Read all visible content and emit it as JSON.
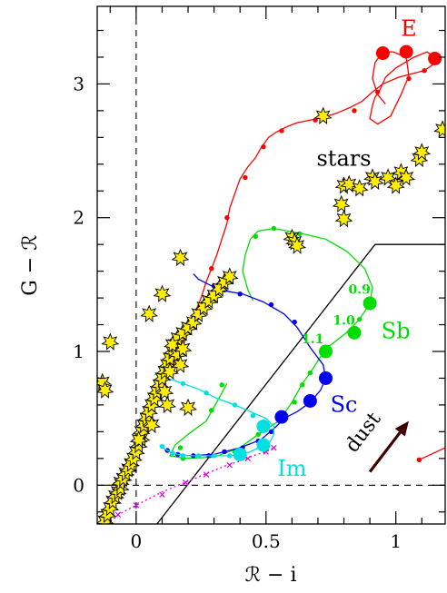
{
  "chart_data": {
    "type": "scatter",
    "title": "",
    "xlabel": "ℛ − i",
    "ylabel": "G − ℛ",
    "xlim": [
      -0.15,
      1.19
    ],
    "ylim": [
      -0.29,
      3.58
    ],
    "xticks": [
      0,
      0.5,
      1
    ],
    "xtick_labels": [
      "0",
      "0.5",
      "1"
    ],
    "yticks": [
      0,
      1,
      2,
      3
    ],
    "ytick_labels": [
      "0",
      "1",
      "2",
      "3"
    ],
    "grid": false,
    "legend": "none",
    "reference_lines": {
      "vertical_dashed_x": 0,
      "horizontal_dashed_y": 0
    },
    "selection_boundary": [
      [
        0.08,
        -0.29
      ],
      [
        0.92,
        1.8
      ],
      [
        1.19,
        1.8
      ]
    ],
    "tracks": [
      {
        "label": "E",
        "color": "#ff0000",
        "style": "solid",
        "small_marker": "dot",
        "line": [
          [
            -0.11,
            -0.27
          ],
          [
            -0.09,
            -0.18
          ],
          [
            -0.06,
            -0.05
          ],
          [
            -0.03,
            0.1
          ],
          [
            0.0,
            0.25
          ],
          [
            0.03,
            0.4
          ],
          [
            0.06,
            0.55
          ],
          [
            0.09,
            0.68
          ],
          [
            0.12,
            0.8
          ],
          [
            0.15,
            0.92
          ],
          [
            0.18,
            1.04
          ],
          [
            0.2,
            1.14
          ],
          [
            0.22,
            1.26
          ],
          [
            0.25,
            1.4
          ],
          [
            0.27,
            1.52
          ],
          [
            0.29,
            1.62
          ],
          [
            0.31,
            1.72
          ],
          [
            0.33,
            1.84
          ],
          [
            0.35,
            1.96
          ],
          [
            0.36,
            2.07
          ],
          [
            0.38,
            2.18
          ],
          [
            0.4,
            2.29
          ],
          [
            0.43,
            2.38
          ],
          [
            0.46,
            2.45
          ],
          [
            0.48,
            2.52
          ],
          [
            0.51,
            2.6
          ],
          [
            0.54,
            2.64
          ],
          [
            0.58,
            2.68
          ],
          [
            0.62,
            2.71
          ],
          [
            0.67,
            2.73
          ],
          [
            0.72,
            2.75
          ],
          [
            0.77,
            2.78
          ],
          [
            0.82,
            2.82
          ],
          [
            0.87,
            2.87
          ],
          [
            0.91,
            2.94
          ],
          [
            0.95,
            3.0
          ],
          [
            1.01,
            3.05
          ],
          [
            1.07,
            3.08
          ],
          [
            1.11,
            3.1
          ],
          [
            1.14,
            3.14
          ],
          [
            1.15,
            3.2
          ],
          [
            1.12,
            3.24
          ],
          [
            1.07,
            3.2
          ],
          [
            1.0,
            3.12
          ],
          [
            0.96,
            3.05
          ],
          [
            0.94,
            2.96
          ],
          [
            0.92,
            2.9
          ],
          [
            0.91,
            2.84
          ],
          [
            0.9,
            2.74
          ],
          [
            0.93,
            2.7
          ],
          [
            0.98,
            2.76
          ],
          [
            1.02,
            2.92
          ],
          [
            1.05,
            3.06
          ],
          [
            1.04,
            3.2
          ],
          [
            0.99,
            3.24
          ],
          [
            0.95,
            3.24
          ],
          [
            0.92,
            3.16
          ],
          [
            0.91,
            3.04
          ],
          [
            0.93,
            2.92
          ],
          [
            0.96,
            2.85
          ]
        ],
        "small_points": [
          [
            0.14,
            0.88
          ],
          [
            0.22,
            1.25
          ],
          [
            0.29,
            1.62
          ],
          [
            0.35,
            2.0
          ],
          [
            0.42,
            2.3
          ],
          [
            0.49,
            2.53
          ],
          [
            0.56,
            2.65
          ],
          [
            0.69,
            2.73
          ],
          [
            0.84,
            2.8
          ],
          [
            0.93,
            2.94
          ],
          [
            1.11,
            3.1
          ],
          [
            1.05,
            3.04
          ]
        ],
        "large_points": [
          [
            0.95,
            3.23
          ],
          [
            1.04,
            3.24
          ],
          [
            1.15,
            3.19
          ]
        ]
      },
      {
        "label": "Sb",
        "color": "#00dd00",
        "style": "solid",
        "small_marker": "dot",
        "line": [
          [
            0.35,
            0.76
          ],
          [
            0.31,
            0.62
          ],
          [
            0.27,
            0.48
          ],
          [
            0.2,
            0.38
          ],
          [
            0.15,
            0.3
          ],
          [
            0.13,
            0.22
          ],
          [
            0.19,
            0.2
          ],
          [
            0.3,
            0.21
          ],
          [
            0.4,
            0.28
          ],
          [
            0.47,
            0.38
          ],
          [
            0.55,
            0.48
          ],
          [
            0.6,
            0.62
          ],
          [
            0.64,
            0.76
          ],
          [
            0.67,
            0.84
          ],
          [
            0.73,
            1.02
          ],
          [
            0.81,
            1.14
          ],
          [
            0.86,
            1.24
          ],
          [
            0.9,
            1.36
          ],
          [
            0.91,
            1.48
          ],
          [
            0.88,
            1.62
          ],
          [
            0.81,
            1.75
          ],
          [
            0.73,
            1.84
          ],
          [
            0.64,
            1.88
          ],
          [
            0.53,
            1.92
          ],
          [
            0.47,
            1.9
          ],
          [
            0.44,
            1.84
          ],
          [
            0.42,
            1.72
          ],
          [
            0.41,
            1.6
          ],
          [
            0.43,
            1.46
          ],
          [
            0.45,
            1.38
          ]
        ],
        "small_points": [
          [
            0.33,
            0.75
          ],
          [
            0.29,
            0.56
          ],
          [
            0.17,
            0.28
          ],
          [
            0.18,
            0.2
          ],
          [
            0.28,
            0.22
          ],
          [
            0.38,
            0.25
          ],
          [
            0.47,
            0.38
          ],
          [
            0.56,
            0.48
          ],
          [
            0.61,
            0.62
          ],
          [
            0.64,
            0.75
          ],
          [
            0.67,
            0.84
          ],
          [
            0.53,
            1.92
          ],
          [
            0.63,
            1.88
          ],
          [
            0.86,
            1.24
          ],
          [
            0.46,
            1.86
          ]
        ],
        "large_points": [
          [
            0.73,
            1.0
          ],
          [
            0.84,
            1.14
          ],
          [
            0.9,
            1.36
          ]
        ],
        "point_labels": [
          {
            "text": "1.1",
            "x": 0.68,
            "y": 1.06
          },
          {
            "text": "1.0",
            "x": 0.8,
            "y": 1.2
          },
          {
            "text": "0.9",
            "x": 0.86,
            "y": 1.43
          }
        ]
      },
      {
        "label": "Sc",
        "color": "#0000ee",
        "style": "solid",
        "small_marker": "dot",
        "line": [
          [
            0.11,
            0.27
          ],
          [
            0.14,
            0.24
          ],
          [
            0.2,
            0.22
          ],
          [
            0.3,
            0.23
          ],
          [
            0.4,
            0.28
          ],
          [
            0.48,
            0.34
          ],
          [
            0.54,
            0.44
          ],
          [
            0.57,
            0.5
          ],
          [
            0.62,
            0.55
          ],
          [
            0.67,
            0.62
          ],
          [
            0.71,
            0.71
          ],
          [
            0.73,
            0.8
          ],
          [
            0.72,
            0.9
          ],
          [
            0.67,
            1.03
          ],
          [
            0.62,
            1.18
          ],
          [
            0.57,
            1.28
          ],
          [
            0.49,
            1.37
          ],
          [
            0.41,
            1.43
          ],
          [
            0.35,
            1.45
          ],
          [
            0.29,
            1.49
          ],
          [
            0.24,
            1.54
          ],
          [
            0.22,
            1.58
          ]
        ],
        "small_points": [
          [
            0.12,
            0.26
          ],
          [
            0.16,
            0.23
          ],
          [
            0.22,
            0.22
          ],
          [
            0.28,
            0.22
          ],
          [
            0.34,
            0.25
          ],
          [
            0.41,
            0.28
          ],
          [
            0.47,
            0.33
          ],
          [
            0.52,
            0.4
          ],
          [
            0.61,
            1.22
          ],
          [
            0.52,
            1.35
          ],
          [
            0.4,
            1.43
          ],
          [
            0.34,
            1.46
          ],
          [
            0.3,
            1.49
          ]
        ],
        "large_points": [
          [
            0.56,
            0.51
          ],
          [
            0.67,
            0.63
          ],
          [
            0.73,
            0.8
          ]
        ]
      },
      {
        "label": "Im",
        "color": "#00e0e0",
        "style": "solid",
        "small_marker": "dot",
        "line": [
          [
            0.09,
            0.3
          ],
          [
            0.12,
            0.26
          ],
          [
            0.16,
            0.23
          ],
          [
            0.2,
            0.22
          ],
          [
            0.25,
            0.22
          ],
          [
            0.3,
            0.22
          ],
          [
            0.36,
            0.22
          ],
          [
            0.4,
            0.23
          ],
          [
            0.44,
            0.25
          ],
          [
            0.47,
            0.28
          ],
          [
            0.5,
            0.3
          ],
          [
            0.52,
            0.34
          ],
          [
            0.53,
            0.38
          ],
          [
            0.53,
            0.44
          ],
          [
            0.5,
            0.5
          ],
          [
            0.44,
            0.55
          ],
          [
            0.38,
            0.6
          ],
          [
            0.31,
            0.65
          ],
          [
            0.25,
            0.71
          ],
          [
            0.18,
            0.76
          ],
          [
            0.12,
            0.8
          ],
          [
            0.07,
            0.83
          ]
        ],
        "small_points": [
          [
            0.1,
            0.29
          ],
          [
            0.14,
            0.24
          ],
          [
            0.18,
            0.22
          ],
          [
            0.24,
            0.22
          ],
          [
            0.3,
            0.22
          ],
          [
            0.36,
            0.22
          ],
          [
            0.45,
            0.52
          ],
          [
            0.38,
            0.6
          ],
          [
            0.27,
            0.69
          ],
          [
            0.18,
            0.76
          ]
        ],
        "large_points": [
          [
            0.4,
            0.23
          ],
          [
            0.49,
            0.3
          ],
          [
            0.49,
            0.44
          ]
        ]
      },
      {
        "label": "",
        "color": "#e000e0",
        "style": "dotted",
        "small_marker": "cross",
        "line": [
          [
            -0.1,
            -0.27
          ],
          [
            -0.05,
            -0.2
          ],
          [
            0.0,
            -0.15
          ],
          [
            0.05,
            -0.1
          ],
          [
            0.1,
            -0.05
          ],
          [
            0.15,
            -0.01
          ],
          [
            0.2,
            0.03
          ],
          [
            0.25,
            0.07
          ],
          [
            0.3,
            0.11
          ],
          [
            0.35,
            0.15
          ],
          [
            0.4,
            0.18
          ],
          [
            0.45,
            0.22
          ],
          [
            0.5,
            0.25
          ],
          [
            0.53,
            0.28
          ]
        ],
        "small_points": [
          [
            -0.07,
            -0.22
          ],
          [
            0.0,
            -0.15
          ],
          [
            0.1,
            -0.07
          ],
          [
            0.19,
            0.02
          ],
          [
            0.27,
            0.08
          ],
          [
            0.36,
            0.15
          ],
          [
            0.43,
            0.2
          ],
          [
            0.5,
            0.25
          ],
          [
            0.53,
            0.28
          ]
        ],
        "large_points": []
      }
    ],
    "red_segment": [
      [
        1.09,
        0.19
      ],
      [
        1.19,
        0.28
      ]
    ],
    "stars": [
      [
        -0.12,
        -0.27
      ],
      [
        -0.11,
        -0.22
      ],
      [
        -0.1,
        -0.17
      ],
      [
        -0.09,
        -0.12
      ],
      [
        -0.08,
        -0.08
      ],
      [
        -0.07,
        -0.05
      ],
      [
        -0.06,
        -0.02
      ],
      [
        -0.06,
        0.02
      ],
      [
        -0.05,
        0.05
      ],
      [
        -0.04,
        0.09
      ],
      [
        -0.03,
        0.12
      ],
      [
        -0.02,
        0.16
      ],
      [
        -0.01,
        0.2
      ],
      [
        0.0,
        0.25
      ],
      [
        0.01,
        0.3
      ],
      [
        0.02,
        0.35
      ],
      [
        0.02,
        0.4
      ],
      [
        0.03,
        0.45
      ],
      [
        0.04,
        0.5
      ],
      [
        0.05,
        0.55
      ],
      [
        0.06,
        0.6
      ],
      [
        0.07,
        0.65
      ],
      [
        0.08,
        0.7
      ],
      [
        0.09,
        0.75
      ],
      [
        0.1,
        0.8
      ],
      [
        0.11,
        0.85
      ],
      [
        0.12,
        0.9
      ],
      [
        0.13,
        0.95
      ],
      [
        0.14,
        1.0
      ],
      [
        0.15,
        1.05
      ],
      [
        0.16,
        1.1
      ],
      [
        0.18,
        1.14
      ],
      [
        0.2,
        1.18
      ],
      [
        0.22,
        1.22
      ],
      [
        0.24,
        1.28
      ],
      [
        0.26,
        1.33
      ],
      [
        0.28,
        1.38
      ],
      [
        0.3,
        1.42
      ],
      [
        0.32,
        1.47
      ],
      [
        0.34,
        1.52
      ],
      [
        0.36,
        1.56
      ],
      [
        0.13,
        0.85
      ],
      [
        0.16,
        0.98
      ],
      [
        0.17,
        0.9
      ],
      [
        0.11,
        0.7
      ],
      [
        0.06,
        0.45
      ],
      [
        0.01,
        0.34
      ],
      [
        0.14,
        1.05
      ],
      [
        0.18,
        1.02
      ],
      [
        0.12,
        0.6
      ],
      [
        -0.13,
        0.77
      ],
      [
        -0.12,
        0.71
      ],
      [
        -0.1,
        1.07
      ],
      [
        0.05,
        1.28
      ],
      [
        0.1,
        1.43
      ],
      [
        0.17,
        1.7
      ],
      [
        0.6,
        1.85
      ],
      [
        0.61,
        1.82
      ],
      [
        0.62,
        1.79
      ],
      [
        0.72,
        2.76
      ],
      [
        0.79,
        2.1
      ],
      [
        0.8,
        1.99
      ],
      [
        0.8,
        2.24
      ],
      [
        0.82,
        2.25
      ],
      [
        0.86,
        2.22
      ],
      [
        0.91,
        2.3
      ],
      [
        0.92,
        2.27
      ],
      [
        0.97,
        2.3
      ],
      [
        1.0,
        2.24
      ],
      [
        1.02,
        2.34
      ],
      [
        1.04,
        2.3
      ],
      [
        1.09,
        2.44
      ],
      [
        1.1,
        2.49
      ],
      [
        1.18,
        2.66
      ],
      [
        0.2,
        0.58
      ]
    ],
    "annotations": [
      {
        "text": "E",
        "x": 1.05,
        "y": 3.36,
        "color": "#ff0000"
      },
      {
        "text": "stars",
        "x": 0.8,
        "y": 2.39,
        "color": "#000000"
      },
      {
        "text": "Sb",
        "x": 1.0,
        "y": 1.1,
        "color": "#00dd00"
      },
      {
        "text": "Sc",
        "x": 0.8,
        "y": 0.55,
        "color": "#0000ee"
      },
      {
        "text": "Im",
        "x": 0.6,
        "y": 0.07,
        "color": "#00e0e0"
      }
    ],
    "dust_vector": {
      "label": "dust",
      "from": [
        0.9,
        0.1
      ],
      "to": [
        1.05,
        0.48
      ],
      "color": "#400000"
    }
  }
}
